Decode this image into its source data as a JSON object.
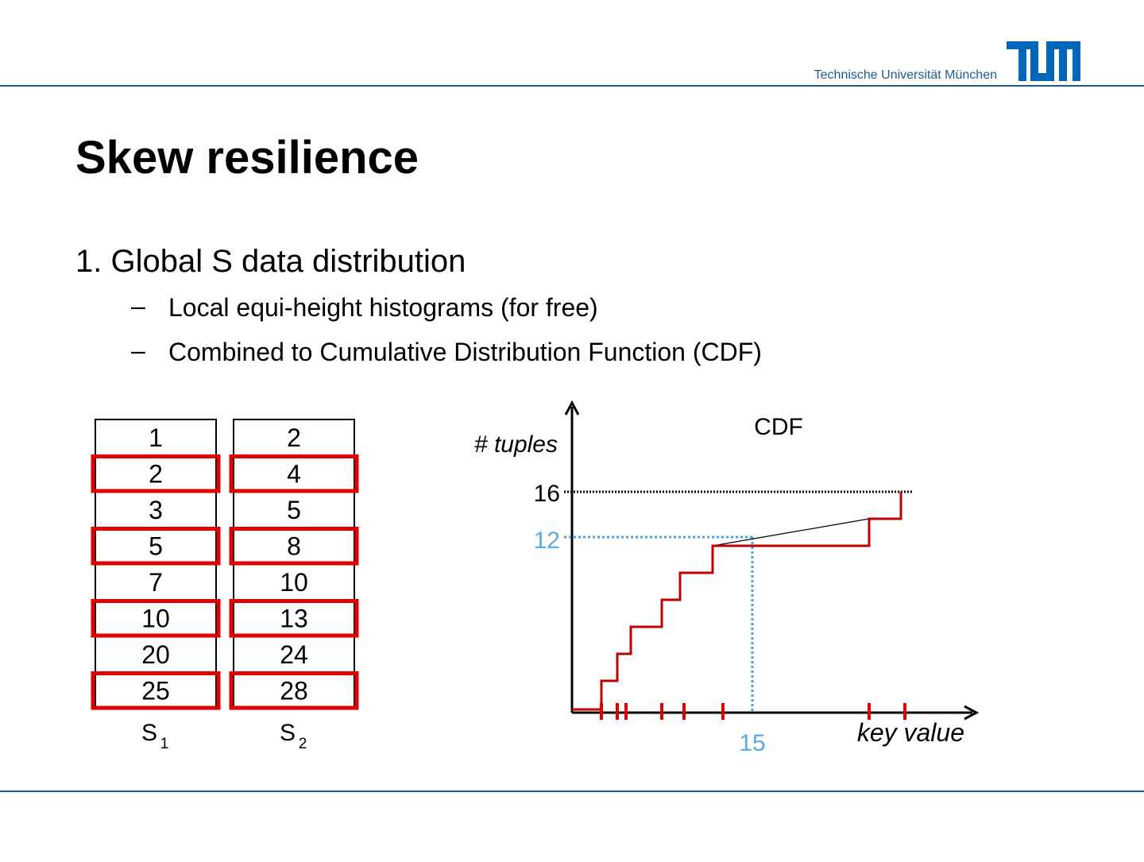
{
  "header": {
    "org": "Technische Universität München"
  },
  "title": "Skew resilience",
  "bullets": [
    {
      "text": "1. Global S data distribution",
      "sub": [
        "Local equi-height histograms (for free)",
        "Combined to Cumulative Distribution Function (CDF)"
      ]
    }
  ],
  "tables": [
    {
      "name": "S",
      "sub": "1",
      "rows": [
        1,
        2,
        3,
        5,
        7,
        10,
        20,
        25
      ]
    },
    {
      "name": "S",
      "sub": "2",
      "rows": [
        2,
        4,
        5,
        8,
        10,
        13,
        24,
        28
      ]
    }
  ],
  "cdf": {
    "title": "CDF",
    "y_label": "# tuples",
    "x_label": "key value",
    "y_top": "16",
    "y_mark": "12",
    "x_mark": "15"
  }
}
